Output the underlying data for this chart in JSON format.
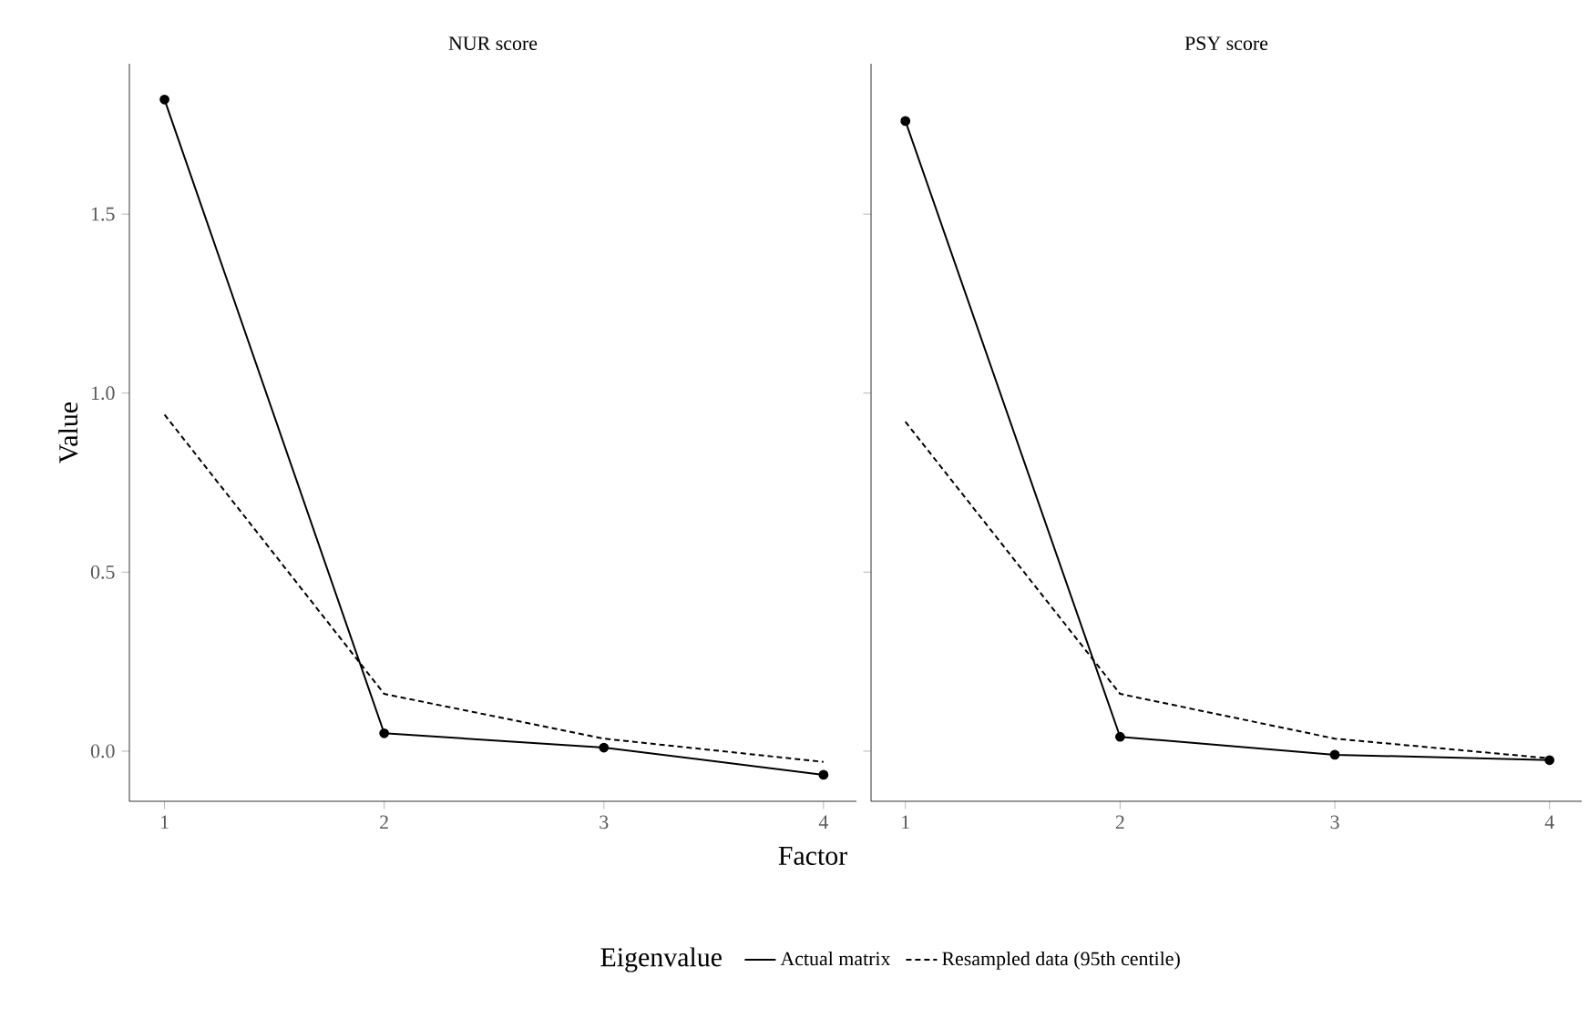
{
  "chart_data": [
    {
      "type": "line",
      "title": "NUR score",
      "xlabel": "Factor",
      "ylabel": "Value",
      "legend_title": "Eigenvalue",
      "legend": "bottom",
      "grid": false,
      "x": [
        1,
        2,
        3,
        4
      ],
      "series": [
        {
          "name": "Actual matrix",
          "color": "#000000",
          "line_style": "solid",
          "marker": "circle",
          "values": [
            1.82,
            0.05,
            0.01,
            -0.066
          ]
        },
        {
          "name": "Resampled data (95th centile)",
          "color": "#000000",
          "line_style": "dashed",
          "marker": "none",
          "values": [
            0.94,
            0.16,
            0.035,
            -0.03
          ]
        }
      ],
      "xlim": [
        0.84,
        4.15
      ],
      "ylim": [
        -0.14,
        1.92
      ],
      "xticks": [
        1,
        2,
        3,
        4
      ],
      "yticks": [
        {
          "value": 0,
          "label": "0.0"
        },
        0.5,
        {
          "value": 1,
          "label": "1.0"
        },
        1.5
      ]
    },
    {
      "type": "line",
      "title": "PSY score",
      "grid": false,
      "x": [
        1,
        2,
        3,
        4
      ],
      "series": [
        {
          "color": "#000000",
          "line_style": "solid",
          "marker": "circle",
          "values": [
            1.76,
            0.04,
            -0.01,
            -0.025
          ]
        },
        {
          "color": "#000000",
          "line_style": "dashed",
          "marker": "none",
          "values": [
            0.92,
            0.16,
            0.035,
            -0.02
          ]
        }
      ],
      "xlim": [
        0.84,
        4.15
      ],
      "ylim": [
        -0.14,
        1.92
      ],
      "xticks": [
        1,
        2,
        3,
        4
      ],
      "yticks": [
        0,
        0.5,
        1,
        1.5
      ],
      "tick_labels": "x"
    }
  ]
}
